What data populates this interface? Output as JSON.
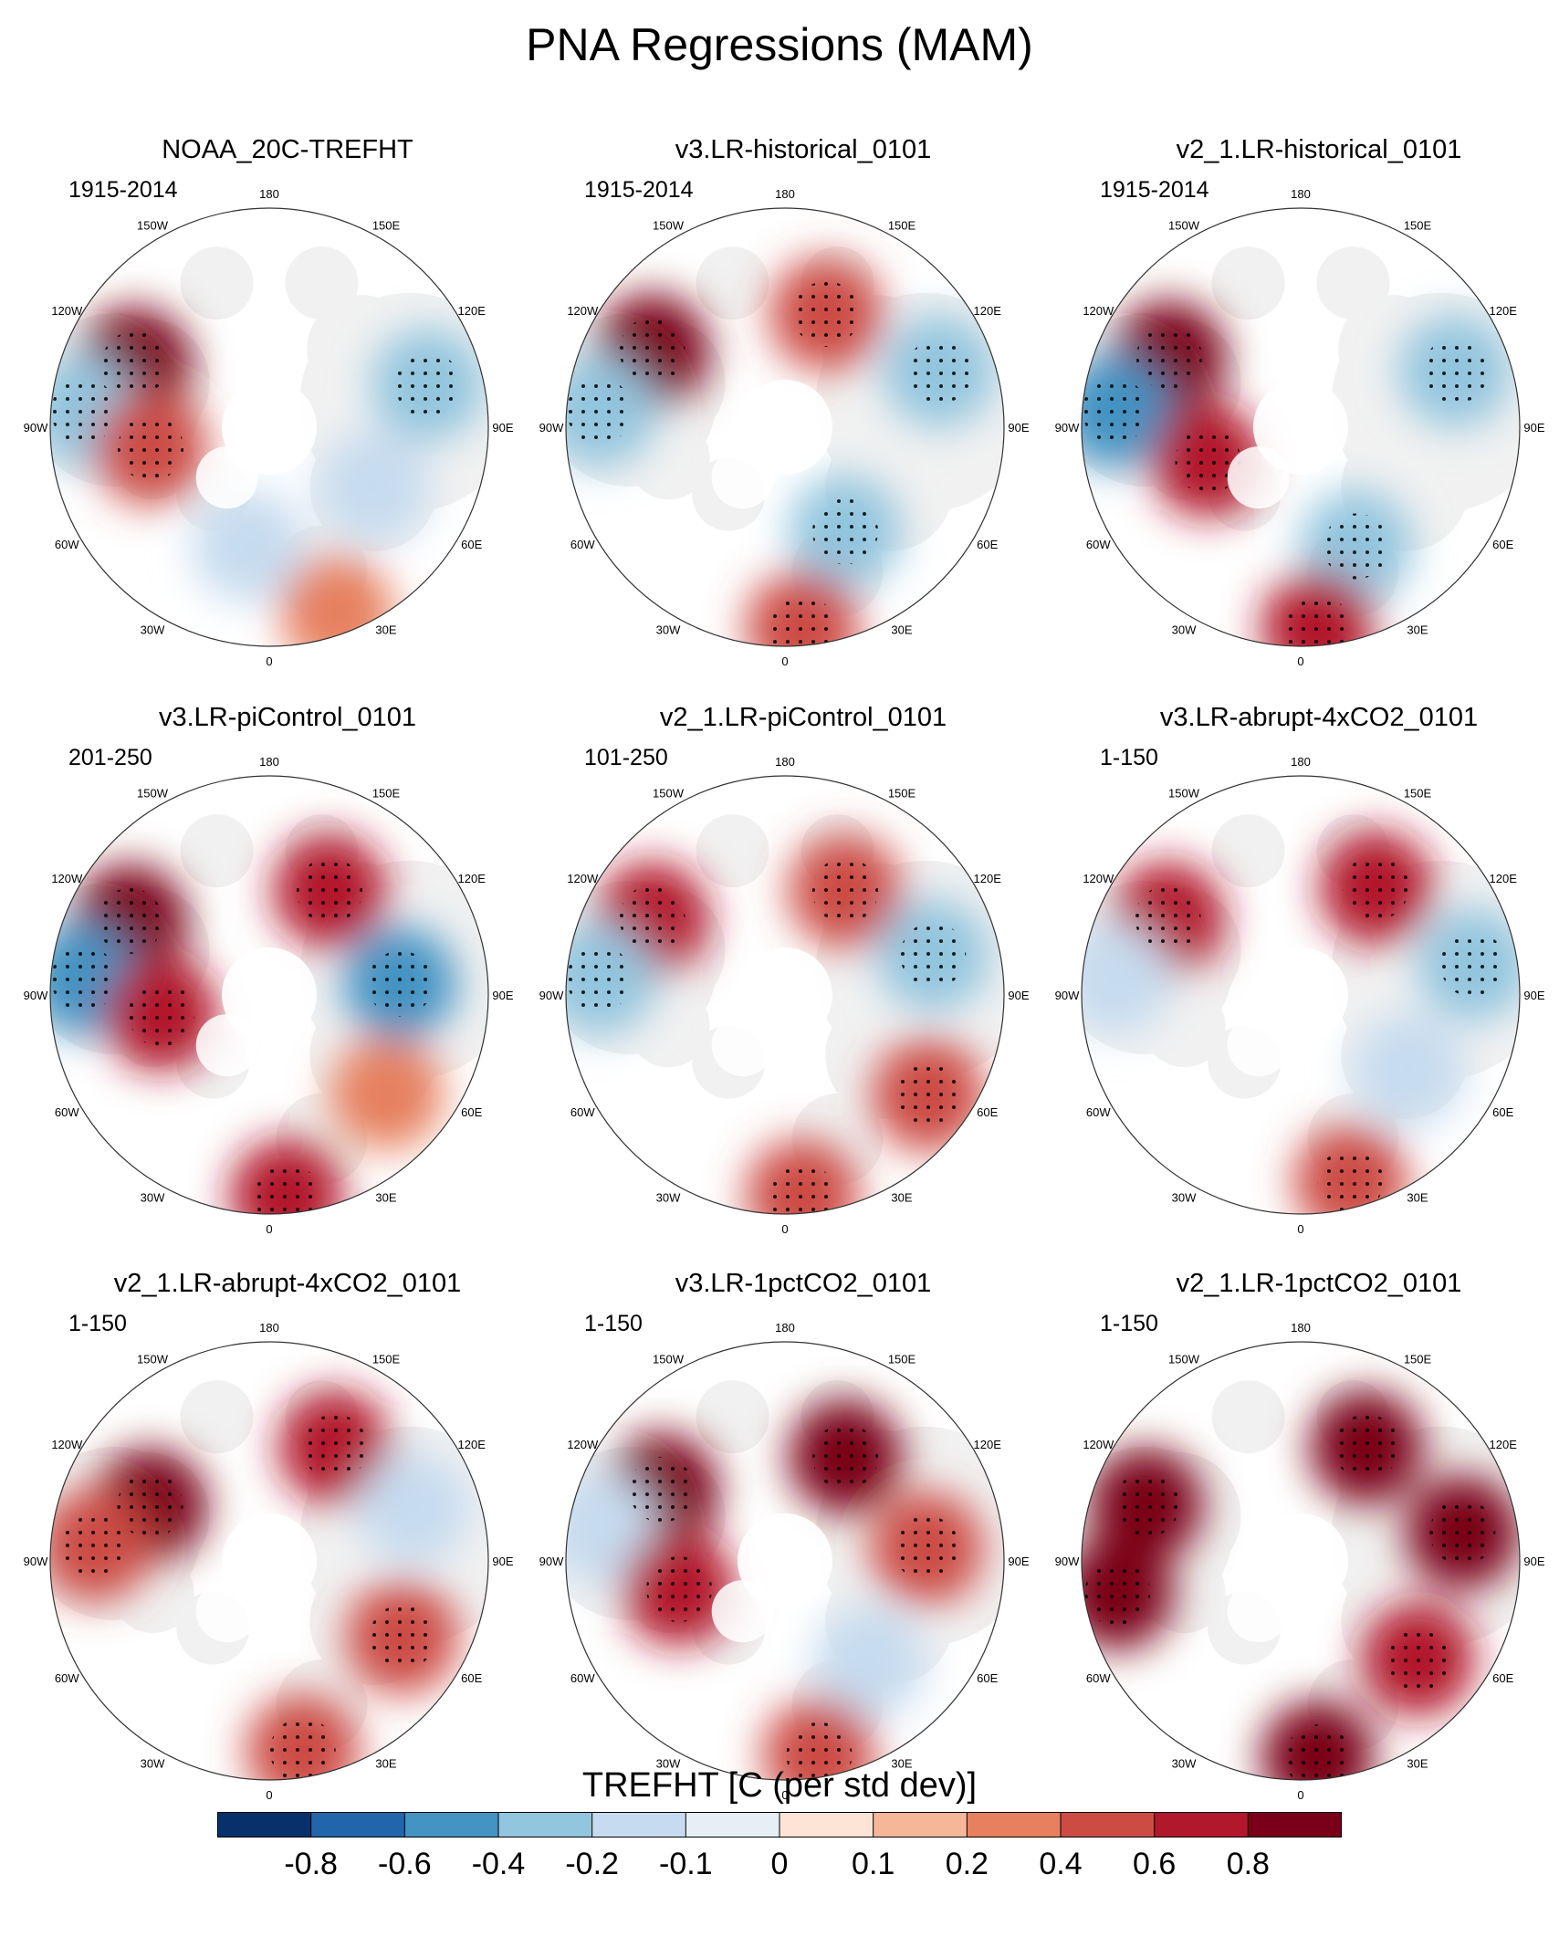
{
  "title": "PNA Regressions (MAM)",
  "chart_data": {
    "type": "heatmap",
    "projection": "north polar stereographic",
    "colorbar": {
      "label": "TREFHT [C (per std dev)]",
      "tick_labels": [
        "-0.8",
        "-0.6",
        "-0.4",
        "-0.2",
        "-0.1",
        "0",
        "0.1",
        "0.2",
        "0.4",
        "0.6",
        "0.8"
      ],
      "colors": [
        "#08306b",
        "#2166ac",
        "#4393c3",
        "#92c5de",
        "#c6dbef",
        "#e6eff6",
        "#fde4d6",
        "#f6b799",
        "#e6805f",
        "#cc4c44",
        "#b2182b",
        "#7a0019"
      ]
    },
    "longitude_labels": [
      "180",
      "150E",
      "120E",
      "90E",
      "60E",
      "30E",
      "0",
      "30W",
      "60W",
      "90W",
      "120W",
      "150W"
    ],
    "panels": [
      {
        "title": "NOAA_20C-TREFHT",
        "period": "1915-2014",
        "anomalies": [
          {
            "lon": -115,
            "r": 0.68,
            "v": 0.8
          },
          {
            "lon": -95,
            "r": 0.85,
            "v": -0.4
          },
          {
            "lon": -80,
            "r": 0.55,
            "v": 0.4
          },
          {
            "lon": 105,
            "r": 0.75,
            "v": -0.4
          },
          {
            "lon": 60,
            "r": 0.55,
            "v": -0.2
          },
          {
            "lon": 20,
            "r": 0.9,
            "v": 0.2
          },
          {
            "lon": -10,
            "r": 0.55,
            "v": -0.2
          }
        ]
      },
      {
        "title": "v3.LR-historical_0101",
        "period": "1915-2014",
        "anomalies": [
          {
            "lon": -120,
            "r": 0.7,
            "v": 0.8
          },
          {
            "lon": -95,
            "r": 0.85,
            "v": -0.4
          },
          {
            "lon": 160,
            "r": 0.55,
            "v": 0.4
          },
          {
            "lon": 110,
            "r": 0.75,
            "v": -0.4
          },
          {
            "lon": 30,
            "r": 0.55,
            "v": -0.4
          },
          {
            "lon": 5,
            "r": 0.92,
            "v": 0.4
          }
        ]
      },
      {
        "title": "v2_1.LR-historical_0101",
        "period": "1915-2014",
        "anomalies": [
          {
            "lon": -118,
            "r": 0.68,
            "v": 0.8
          },
          {
            "lon": -95,
            "r": 0.85,
            "v": -0.6
          },
          {
            "lon": -70,
            "r": 0.45,
            "v": 0.6
          },
          {
            "lon": 110,
            "r": 0.75,
            "v": -0.4
          },
          {
            "lon": 25,
            "r": 0.6,
            "v": -0.4
          },
          {
            "lon": 5,
            "r": 0.92,
            "v": 0.6
          }
        ]
      },
      {
        "title": "v3.LR-piControl_0101",
        "period": "201-250",
        "anomalies": [
          {
            "lon": -118,
            "r": 0.72,
            "v": 0.8
          },
          {
            "lon": -95,
            "r": 0.85,
            "v": -0.6
          },
          {
            "lon": -80,
            "r": 0.5,
            "v": 0.6
          },
          {
            "lon": 150,
            "r": 0.55,
            "v": 0.6
          },
          {
            "lon": 95,
            "r": 0.6,
            "v": -0.6
          },
          {
            "lon": 50,
            "r": 0.7,
            "v": 0.2
          },
          {
            "lon": 5,
            "r": 0.92,
            "v": 0.6
          }
        ]
      },
      {
        "title": "v2_1.LR-piControl_0101",
        "period": "101-250",
        "anomalies": [
          {
            "lon": -120,
            "r": 0.7,
            "v": 0.6
          },
          {
            "lon": -95,
            "r": 0.85,
            "v": -0.4
          },
          {
            "lon": 150,
            "r": 0.55,
            "v": 0.4
          },
          {
            "lon": 105,
            "r": 0.7,
            "v": -0.4
          },
          {
            "lon": 55,
            "r": 0.8,
            "v": 0.4
          },
          {
            "lon": 5,
            "r": 0.92,
            "v": 0.4
          }
        ]
      },
      {
        "title": "v3.LR-abrupt-4xCO2_0101",
        "period": "1-150",
        "anomalies": [
          {
            "lon": -120,
            "r": 0.7,
            "v": 0.6
          },
          {
            "lon": -95,
            "r": 0.85,
            "v": -0.2
          },
          {
            "lon": 145,
            "r": 0.6,
            "v": 0.6
          },
          {
            "lon": 100,
            "r": 0.8,
            "v": -0.4
          },
          {
            "lon": 55,
            "r": 0.6,
            "v": -0.2
          },
          {
            "lon": 15,
            "r": 0.88,
            "v": 0.4
          }
        ]
      },
      {
        "title": "v2_1.LR-abrupt-4xCO2_0101",
        "period": "1-150",
        "anomalies": [
          {
            "lon": -115,
            "r": 0.6,
            "v": 0.8
          },
          {
            "lon": -95,
            "r": 0.8,
            "v": 0.4
          },
          {
            "lon": 150,
            "r": 0.6,
            "v": 0.6
          },
          {
            "lon": 110,
            "r": 0.7,
            "v": -0.2
          },
          {
            "lon": 60,
            "r": 0.7,
            "v": 0.4
          },
          {
            "lon": 10,
            "r": 0.88,
            "v": 0.4
          }
        ]
      },
      {
        "title": "v3.LR-1pctCO2_0101",
        "period": "1-150",
        "anomalies": [
          {
            "lon": -120,
            "r": 0.65,
            "v": 0.8
          },
          {
            "lon": -100,
            "r": 0.85,
            "v": -0.2
          },
          {
            "lon": -75,
            "r": 0.5,
            "v": 0.6
          },
          {
            "lon": 150,
            "r": 0.55,
            "v": 0.8
          },
          {
            "lon": 95,
            "r": 0.65,
            "v": 0.4
          },
          {
            "lon": 40,
            "r": 0.6,
            "v": -0.2
          },
          {
            "lon": 10,
            "r": 0.9,
            "v": 0.4
          }
        ]
      },
      {
        "title": "v2_1.LR-1pctCO2_0101",
        "period": "1-150",
        "anomalies": [
          {
            "lon": -110,
            "r": 0.75,
            "v": 0.8
          },
          {
            "lon": -80,
            "r": 0.85,
            "v": 0.8
          },
          {
            "lon": 150,
            "r": 0.6,
            "v": 0.8
          },
          {
            "lon": 100,
            "r": 0.75,
            "v": 0.8
          },
          {
            "lon": 50,
            "r": 0.7,
            "v": 0.6
          },
          {
            "lon": 5,
            "r": 0.9,
            "v": 0.8
          }
        ]
      }
    ]
  }
}
